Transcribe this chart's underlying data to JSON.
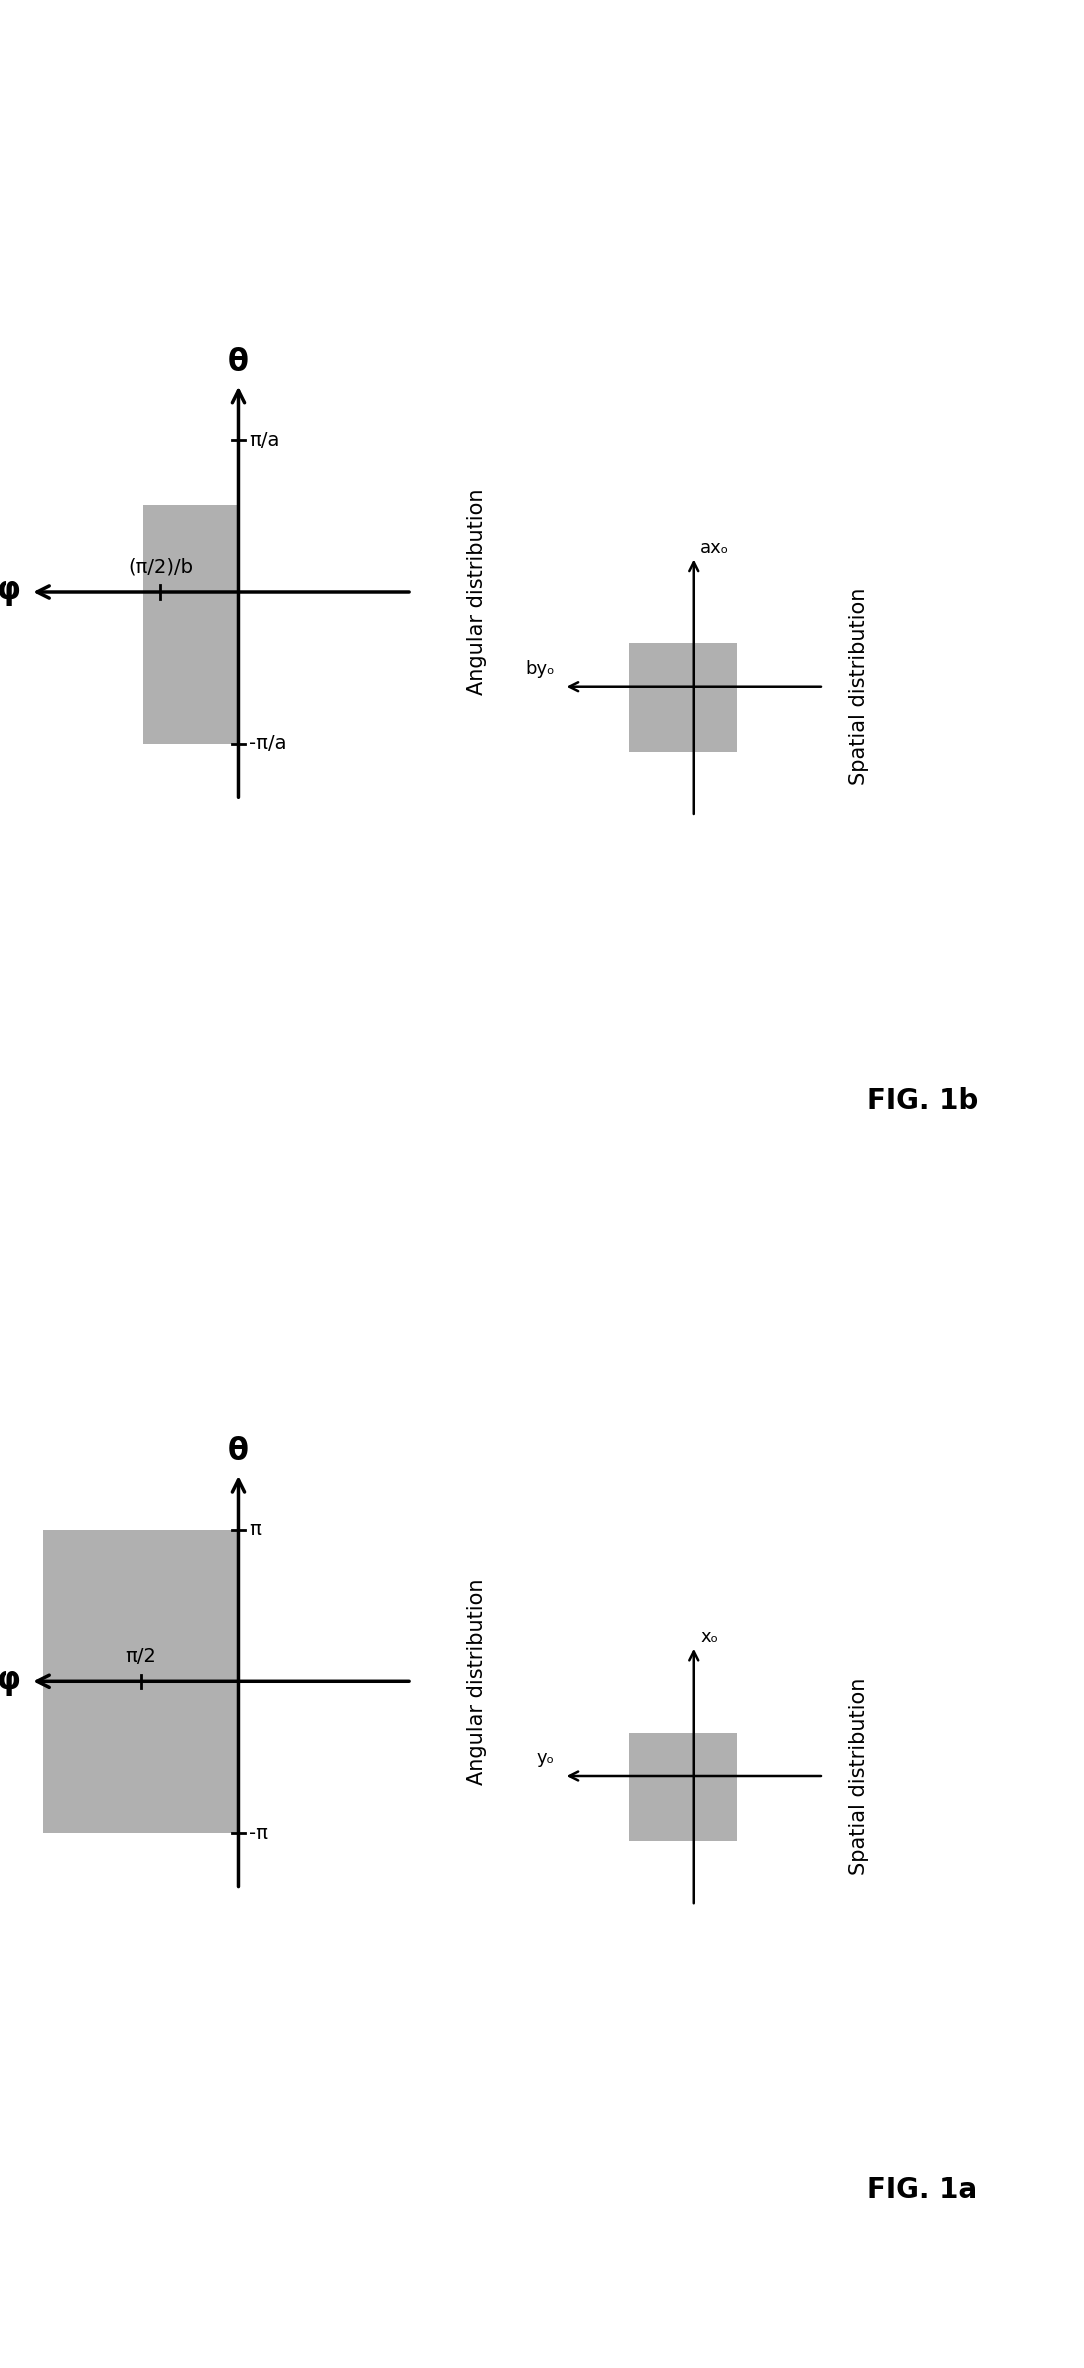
{
  "background_color": "#ffffff",
  "gray_color": "#b0b0b0",
  "fig1a": {
    "title": "FIG. 1a",
    "angular_label": "Angular distribution",
    "spatial_label": "Spatial distribution",
    "theta_label": "θ",
    "phi_label": "φ",
    "ang_tick_theta": "π",
    "ang_tick_neg_theta": "-π",
    "ang_tick_phi": "π/2",
    "spa_x_label": "xₒ",
    "spa_y_label": "yₒ"
  },
  "fig1b": {
    "title": "FIG. 1b",
    "angular_label": "Angular distribution",
    "spatial_label": "Spatial distribution",
    "theta_label": "θ",
    "phi_label": "φ",
    "ang_tick_theta": "π/a",
    "ang_tick_neg_theta": "-π/a",
    "ang_tick_phi": "(π/2)/b",
    "spa_x_label": "axₒ",
    "spa_y_label": "byₒ"
  }
}
